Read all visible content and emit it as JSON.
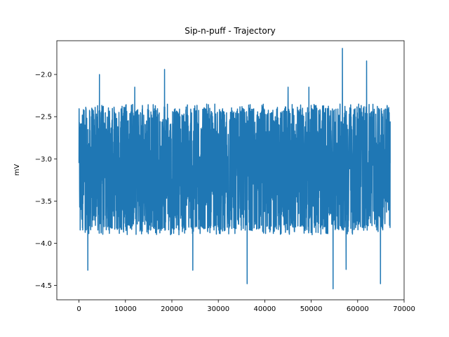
{
  "chart_data": {
    "type": "line",
    "title": "Sip-n-puff - Trajectory",
    "xlabel": "",
    "ylabel": "mV",
    "xlim": [
      -4770,
      70000
    ],
    "ylim": [
      -4.67,
      -1.6
    ],
    "x_ticks": [
      0,
      10000,
      20000,
      30000,
      40000,
      50000,
      60000,
      70000
    ],
    "x_tick_labels": [
      "0",
      "10000",
      "20000",
      "30000",
      "40000",
      "50000",
      "60000",
      "70000"
    ],
    "y_ticks": [
      -2.0,
      -2.5,
      -3.0,
      -3.5,
      -4.0,
      -4.5
    ],
    "y_tick_labels": [
      "−2.0",
      "−2.5",
      "−3.0",
      "−3.5",
      "−4.0",
      "−4.5"
    ],
    "grid": false,
    "series": [
      {
        "color": "#1f77b4",
        "x_range": [
          0,
          67000
        ],
        "sample_count": 67000,
        "typical_range": [
          -3.9,
          -2.35
        ],
        "baseline": -3.05,
        "extremes": [
          {
            "x": 4400,
            "y": -2.0
          },
          {
            "x": 1900,
            "y": -4.32
          },
          {
            "x": 18400,
            "y": -1.94
          },
          {
            "x": 12000,
            "y": -2.15
          },
          {
            "x": 24500,
            "y": -4.32
          },
          {
            "x": 36200,
            "y": -4.48
          },
          {
            "x": 45000,
            "y": -2.15
          },
          {
            "x": 49500,
            "y": -2.15
          },
          {
            "x": 54700,
            "y": -4.54
          },
          {
            "x": 56700,
            "y": -1.69
          },
          {
            "x": 57500,
            "y": -4.31
          },
          {
            "x": 61900,
            "y": -1.84
          },
          {
            "x": 64900,
            "y": -4.48
          },
          {
            "x": 66500,
            "y": -2.5
          }
        ]
      }
    ]
  }
}
